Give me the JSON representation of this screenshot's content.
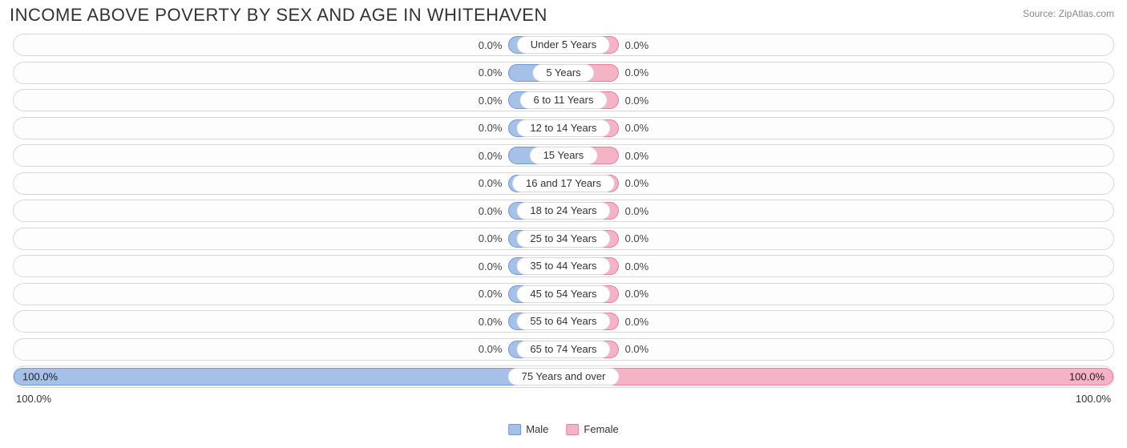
{
  "title": "INCOME ABOVE POVERTY BY SEX AND AGE IN WHITEHAVEN",
  "source": "Source: ZipAtlas.com",
  "chart": {
    "type": "population-pyramid",
    "male_color": "#a6c1e8",
    "male_border": "#6f98d6",
    "female_color": "#f5b3c6",
    "female_border": "#ea7ba1",
    "row_border": "#d8d8d8",
    "row_bg": "#fdfdfd",
    "text_color": "#333333",
    "partial_bar_width_pct": 10,
    "rows": [
      {
        "age": "Under 5 Years",
        "male_pct": 0.0,
        "female_pct": 0.0,
        "male_label": "0.0%",
        "female_label": "0.0%"
      },
      {
        "age": "5 Years",
        "male_pct": 0.0,
        "female_pct": 0.0,
        "male_label": "0.0%",
        "female_label": "0.0%"
      },
      {
        "age": "6 to 11 Years",
        "male_pct": 0.0,
        "female_pct": 0.0,
        "male_label": "0.0%",
        "female_label": "0.0%"
      },
      {
        "age": "12 to 14 Years",
        "male_pct": 0.0,
        "female_pct": 0.0,
        "male_label": "0.0%",
        "female_label": "0.0%"
      },
      {
        "age": "15 Years",
        "male_pct": 0.0,
        "female_pct": 0.0,
        "male_label": "0.0%",
        "female_label": "0.0%"
      },
      {
        "age": "16 and 17 Years",
        "male_pct": 0.0,
        "female_pct": 0.0,
        "male_label": "0.0%",
        "female_label": "0.0%"
      },
      {
        "age": "18 to 24 Years",
        "male_pct": 0.0,
        "female_pct": 0.0,
        "male_label": "0.0%",
        "female_label": "0.0%"
      },
      {
        "age": "25 to 34 Years",
        "male_pct": 0.0,
        "female_pct": 0.0,
        "male_label": "0.0%",
        "female_label": "0.0%"
      },
      {
        "age": "35 to 44 Years",
        "male_pct": 0.0,
        "female_pct": 0.0,
        "male_label": "0.0%",
        "female_label": "0.0%"
      },
      {
        "age": "45 to 54 Years",
        "male_pct": 0.0,
        "female_pct": 0.0,
        "male_label": "0.0%",
        "female_label": "0.0%"
      },
      {
        "age": "55 to 64 Years",
        "male_pct": 0.0,
        "female_pct": 0.0,
        "male_label": "0.0%",
        "female_label": "0.0%"
      },
      {
        "age": "65 to 74 Years",
        "male_pct": 0.0,
        "female_pct": 0.0,
        "male_label": "0.0%",
        "female_label": "0.0%"
      },
      {
        "age": "75 Years and over",
        "male_pct": 100.0,
        "female_pct": 100.0,
        "male_label": "100.0%",
        "female_label": "100.0%"
      }
    ],
    "axis": {
      "left": "100.0%",
      "right": "100.0%"
    },
    "legend": {
      "male": "Male",
      "female": "Female"
    }
  }
}
